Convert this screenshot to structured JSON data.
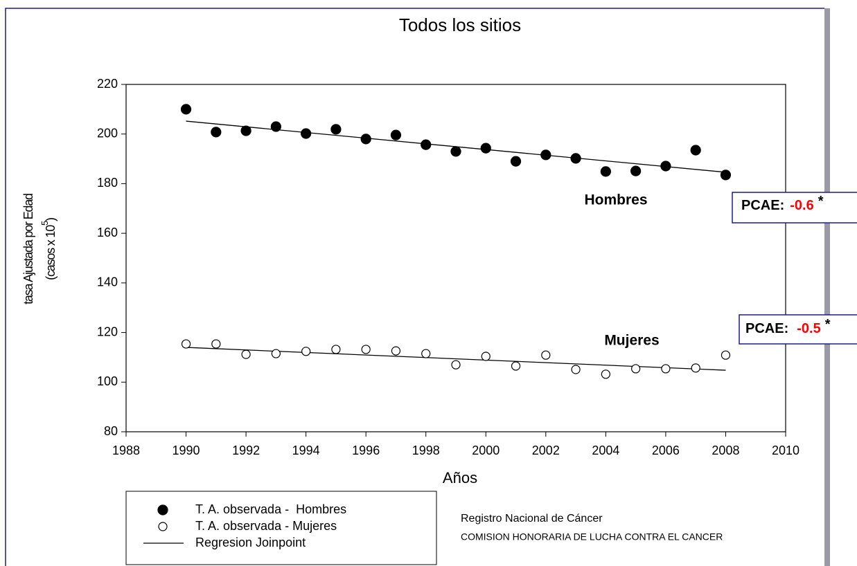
{
  "chart_data": {
    "type": "scatter",
    "title": "Todos los sitios",
    "xlabel": "Años",
    "ylabel": "tasa Ajustada por Edad",
    "ylabel2": {
      "text": "(casos x 10",
      "superscript": "5",
      "end": ")"
    },
    "xlim": [
      1988,
      2010
    ],
    "xticks": [
      1988,
      1990,
      1992,
      1994,
      1996,
      1998,
      2000,
      2002,
      2004,
      2006,
      2008,
      2010
    ],
    "ylim": [
      80,
      220
    ],
    "yticks": [
      80,
      100,
      120,
      140,
      160,
      180,
      200,
      220
    ],
    "x": [
      1990,
      1991,
      1992,
      1993,
      1994,
      1995,
      1996,
      1997,
      1998,
      1999,
      2000,
      2001,
      2002,
      2003,
      2004,
      2005,
      2006,
      2007,
      2008
    ],
    "series": [
      {
        "name": "T. A. observada -  Hombres",
        "color": "#000000",
        "filled": true,
        "values": [
          210,
          200.8,
          201.3,
          203,
          200.2,
          201.9,
          198,
          199.6,
          195.7,
          193,
          194.3,
          189,
          191.6,
          190.2,
          184.9,
          185.1,
          187.1,
          193.5,
          183.5
        ]
      },
      {
        "name": "T. A. observada - Mujeres",
        "color": "#000000",
        "filled": false,
        "values": [
          115.4,
          115.4,
          111.2,
          111.5,
          112.4,
          113.2,
          113.2,
          112.6,
          111.5,
          107,
          110.4,
          106.5,
          110.9,
          105.1,
          103.2,
          105.4,
          105.4,
          105.7,
          110.9
        ]
      }
    ],
    "regression": {
      "name": "Regresion Joinpoint",
      "color": "#000000",
      "lines": [
        {
          "x": [
            1990,
            2008
          ],
          "values": [
            205.2,
            184.6
          ]
        },
        {
          "x": [
            1990,
            2008
          ],
          "values": [
            114,
            104.8
          ]
        }
      ]
    },
    "annotations": [
      {
        "text": "Hombres",
        "pcae_label": "PCAE:",
        "pcae": -0.6,
        "mark": "*"
      },
      {
        "text": "Mujeres",
        "pcae_label": "PCAE:",
        "pcae": -0.5,
        "mark": "*"
      }
    ],
    "source": [
      "Registro Nacional de Cáncer",
      "COMISION HONORARIA DE LUCHA CONTRA EL CANCER"
    ]
  }
}
